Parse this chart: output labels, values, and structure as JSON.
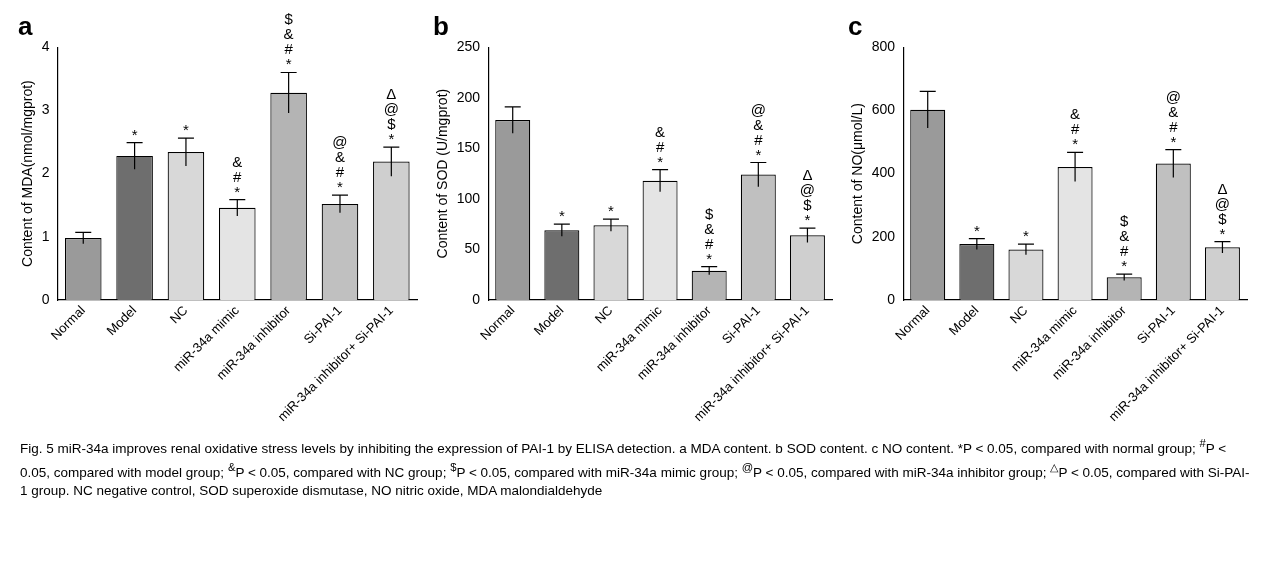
{
  "chart_data": [
    {
      "type": "bar",
      "title": "a",
      "ylabel": "Content of MDA(nmol/mgprot)",
      "categories": [
        "Normal",
        "Model",
        "NC",
        "miR-34a mimic",
        "miR-34a inhibitor",
        "Si-PAI-1",
        "miR-34a inhibitor+ Si-PAI-1"
      ],
      "values": [
        0.98,
        2.28,
        2.34,
        1.46,
        3.28,
        1.52,
        2.19
      ],
      "errors": [
        0.09,
        0.21,
        0.22,
        0.13,
        0.32,
        0.14,
        0.23
      ],
      "colors": [
        "#9a9a9a",
        "#6e6e6e",
        "#d8d8d8",
        "#e4e4e4",
        "#b4b4b4",
        "#c0c0c0",
        "#cfcfcf"
      ],
      "ylim": [
        0,
        4
      ],
      "yticks": [
        0,
        1,
        2,
        3,
        4
      ],
      "grid": false,
      "legend": false,
      "annotations": [
        {
          "text": "*",
          "x": "Model",
          "y": 2.49
        },
        {
          "text": "*",
          "x": "NC",
          "y": 2.56
        },
        {
          "text": "&\n#\n*",
          "x": "miR-34a mimic",
          "y": 1.59
        },
        {
          "text": "$\n&\n#\n*",
          "x": "miR-34a inhibitor",
          "y": 3.6
        },
        {
          "text": "@\n&\n#\n*",
          "x": "Si-PAI-1",
          "y": 1.66
        },
        {
          "text": "Δ\n@\n$\n*",
          "x": "miR-34a inhibitor+ Si-PAI-1",
          "y": 2.42
        },
        "Fig. 5  miR-34a improves renal oxidative stress levels by inhibiting the expression of PAI-1 by ELISA detection. a MDA content. b SOD content. c NO content. *P < 0.05, compared with normal group; $^{#}$P < 0.05, compared with model group; $^{&}$P < 0.05, compared with NC group; $^{$}$P < 0.05, compared with miR-34a mimic group; $^{@}$P < 0.05, compared with miR-34a inhibitor group; $^{△}$P < 0.05, compared with Si-PAI-1 group. NC negative control, SOD superoxide dismutase, NO nitric oxide, MDA malondialdehyde"
      ]
    },
    {
      "type": "bar",
      "title": "b",
      "ylabel": "Content of SOD (U/mgprot)",
      "categories": [
        "Normal",
        "Model",
        "NC",
        "miR-34a mimic",
        "miR-34a inhibitor",
        "Si-PAI-1",
        "miR-34a inhibitor+ Si-PAI-1"
      ],
      "values": [
        178,
        69,
        74,
        118,
        29,
        124,
        64
      ],
      "errors": [
        13,
        6,
        6,
        11,
        4,
        12,
        7
      ],
      "colors": [
        "#9a9a9a",
        "#6e6e6e",
        "#d8d8d8",
        "#e4e4e4",
        "#b4b4b4",
        "#c0c0c0",
        "#cfcfcf"
      ],
      "ylim": [
        0,
        250
      ],
      "yticks": [
        0,
        50,
        100,
        150,
        200,
        250
      ],
      "grid": false,
      "legend": false,
      "annotations": [
        {
          "text": "*",
          "x": "Model",
          "y": 75
        },
        {
          "text": "*",
          "x": "NC",
          "y": 80
        },
        {
          "text": "&\n#\n*",
          "x": "miR-34a mimic",
          "y": 129
        },
        {
          "text": "$\n&\n#\n*",
          "x": "miR-34a inhibitor",
          "y": 33
        },
        {
          "text": "@\n&\n#\n*",
          "x": "Si-PAI-1",
          "y": 136
        },
        {
          "text": "Δ\n@\n$\n*",
          "x": "miR-34a inhibitor+ Si-PAI-1",
          "y": 71
        }
      ]
    },
    {
      "type": "bar",
      "title": "c",
      "ylabel": "Content of NO(μmol/L)",
      "categories": [
        "Normal",
        "Model",
        "NC",
        "miR-34a mimic",
        "miR-34a inhibitor",
        "Si-PAI-1",
        "miR-34a inhibitor+ Si-PAI-1"
      ],
      "values": [
        602,
        177,
        160,
        421,
        72,
        432,
        167
      ],
      "errors": [
        58,
        17,
        17,
        46,
        10,
        44,
        18
      ],
      "colors": [
        "#9a9a9a",
        "#6e6e6e",
        "#d8d8d8",
        "#e4e4e4",
        "#b4b4b4",
        "#c0c0c0",
        "#cfcfcf"
      ],
      "ylim": [
        0,
        800
      ],
      "yticks": [
        0,
        200,
        400,
        600,
        800
      ],
      "grid": false,
      "legend": false,
      "annotations": [
        {
          "text": "*",
          "x": "Model",
          "y": 194
        },
        {
          "text": "*",
          "x": "NC",
          "y": 177
        },
        {
          "text": "&\n#\n*",
          "x": "miR-34a mimic",
          "y": 467
        },
        {
          "text": "$\n&\n#\n*",
          "x": "miR-34a inhibitor",
          "y": 82
        },
        {
          "text": "@\n&\n#\n*",
          "x": "Si-PAI-1",
          "y": 476
        },
        {
          "text": "Δ\n@\n$\n*",
          "x": "miR-34a inhibitor+ Si-PAI-1",
          "y": 185
        }
      ]
    }
  ]
}
